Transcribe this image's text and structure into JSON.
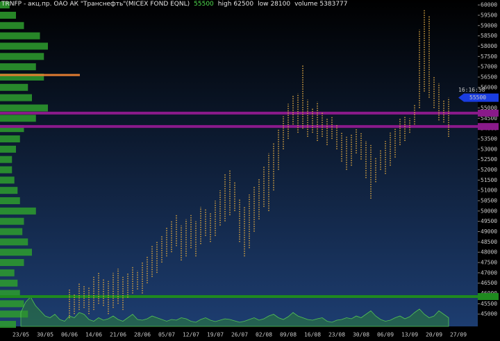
{
  "chart_data": {
    "type": "range-bar",
    "title": "TRNFP - акц.пр. ОАО АК \"Транснефть\"(MICEX FOND EQNL)",
    "last": 55500,
    "stats": [
      {
        "label": "high",
        "value": 62500
      },
      {
        "label": "low",
        "value": 28100
      },
      {
        "label": "volume",
        "value": 5383777
      }
    ],
    "time": "16:16:58",
    "categories": [
      "23/05",
      null,
      null,
      null,
      null,
      "30/05",
      null,
      null,
      null,
      null,
      "06/06",
      null,
      null,
      null,
      null,
      "14/06",
      null,
      null,
      null,
      null,
      "21/06",
      null,
      null,
      null,
      null,
      "28/06",
      null,
      null,
      null,
      null,
      "05/07",
      null,
      null,
      null,
      null,
      "12/07",
      null,
      null,
      null,
      null,
      "19/07",
      null,
      null,
      null,
      null,
      "26/07",
      null,
      null,
      null,
      null,
      "02/08",
      null,
      null,
      null,
      null,
      "09/08",
      null,
      null,
      null,
      null,
      "16/08",
      null,
      null,
      null,
      null,
      "23/08",
      null,
      null,
      null,
      null,
      "30/08",
      null,
      null,
      null,
      null,
      "06/09",
      null,
      null,
      null,
      null,
      "13/09",
      null,
      null,
      null,
      null,
      "20/09",
      null,
      null,
      null,
      null,
      "27/09"
    ],
    "series": [
      {
        "name": "low",
        "color": "#d9a441",
        "values": [
          null,
          null,
          null,
          null,
          null,
          null,
          null,
          null,
          null,
          null,
          44800,
          45000,
          45200,
          45300,
          45000,
          45200,
          45500,
          45400,
          45000,
          45300,
          45500,
          45200,
          45800,
          46000,
          46200,
          46000,
          46500,
          46800,
          47000,
          47500,
          47800,
          48000,
          48300,
          47600,
          47800,
          48200,
          47800,
          48400,
          48800,
          48500,
          48800,
          49300,
          49500,
          49800,
          50000,
          48500,
          47800,
          48200,
          49000,
          49600,
          50200,
          50000,
          51000,
          52000,
          53000,
          53500,
          54200,
          53800,
          54000,
          53600,
          53800,
          53400,
          53600,
          53200,
          53500,
          53000,
          52400,
          52000,
          52200,
          52800,
          52500,
          51600,
          50600,
          51400,
          52000,
          51800,
          52200,
          52600,
          53200,
          53400,
          53800,
          54200,
          55000,
          55800,
          55500,
          55000,
          54400,
          54300,
          53600,
          null,
          null
        ]
      },
      {
        "name": "high",
        "color": "#d9a441",
        "values": [
          null,
          null,
          null,
          null,
          null,
          null,
          null,
          null,
          null,
          null,
          46200,
          46000,
          46500,
          46400,
          46300,
          46800,
          47000,
          46700,
          46600,
          47000,
          47200,
          46800,
          47000,
          47300,
          47100,
          47500,
          47800,
          48300,
          48500,
          48800,
          49200,
          49500,
          49800,
          49300,
          49600,
          49800,
          49500,
          50200,
          50100,
          49900,
          50500,
          51000,
          51800,
          52000,
          51400,
          50600,
          50200,
          50800,
          51200,
          51600,
          52200,
          52800,
          53300,
          54000,
          54600,
          55200,
          55600,
          55700,
          57100,
          55400,
          55000,
          55300,
          54800,
          54500,
          54600,
          54200,
          53800,
          53600,
          53700,
          54000,
          53800,
          53400,
          53200,
          52600,
          53000,
          53400,
          53800,
          54000,
          54500,
          54600,
          54500,
          55200,
          58800,
          59800,
          59500,
          56500,
          56200,
          55400,
          55500,
          null,
          null
        ]
      }
    ],
    "volume": {
      "color": "#2f8f2f",
      "values": [
        40,
        70,
        85,
        60,
        45,
        30,
        25,
        35,
        20,
        15,
        30,
        25,
        40,
        35,
        20,
        15,
        25,
        18,
        22,
        30,
        20,
        15,
        25,
        35,
        20,
        18,
        22,
        30,
        25,
        20,
        15,
        20,
        18,
        25,
        22,
        15,
        12,
        20,
        25,
        18,
        14,
        18,
        22,
        20,
        16,
        12,
        15,
        20,
        25,
        18,
        22,
        30,
        35,
        25,
        20,
        28,
        40,
        30,
        25,
        20,
        18,
        22,
        25,
        15,
        12,
        18,
        20,
        25,
        22,
        30,
        25,
        35,
        45,
        30,
        20,
        15,
        18,
        25,
        30,
        22,
        28,
        40,
        50,
        35,
        25,
        30,
        45,
        35,
        25,
        null,
        null
      ]
    },
    "profile": {
      "color": "#2e9e2e",
      "peak_color": "#e07b30",
      "peak": 56600,
      "levels": [
        44500,
        45000,
        45500,
        46000,
        46500,
        47000,
        47500,
        48000,
        48500,
        49000,
        49500,
        50000,
        50500,
        51000,
        51500,
        52000,
        52500,
        53000,
        53500,
        54000,
        54500,
        55000,
        55500,
        56000,
        56500,
        57000,
        57500,
        58000,
        58500,
        59000,
        59500,
        60000
      ],
      "values": [
        20,
        35,
        30,
        25,
        22,
        18,
        30,
        40,
        35,
        28,
        30,
        45,
        25,
        22,
        18,
        15,
        15,
        20,
        25,
        30,
        45,
        60,
        40,
        35,
        55,
        45,
        55,
        60,
        50,
        30,
        20,
        12
      ]
    },
    "levels": [
      {
        "value": 54750,
        "color": "#8a1a8a"
      },
      {
        "value": 54100,
        "color": "#8a1a8a"
      },
      {
        "value": 45850,
        "color": "#1f8a1f"
      }
    ],
    "ylim": [
      44400,
      60240
    ],
    "yticks": [
      45000,
      45500,
      46000,
      46500,
      47000,
      47500,
      48000,
      48500,
      49000,
      49500,
      50000,
      50500,
      51000,
      51500,
      52000,
      52500,
      53000,
      53500,
      54000,
      54500,
      55000,
      55500,
      56000,
      56500,
      57000,
      57500,
      58000,
      58500,
      59000,
      59500,
      60000
    ]
  }
}
